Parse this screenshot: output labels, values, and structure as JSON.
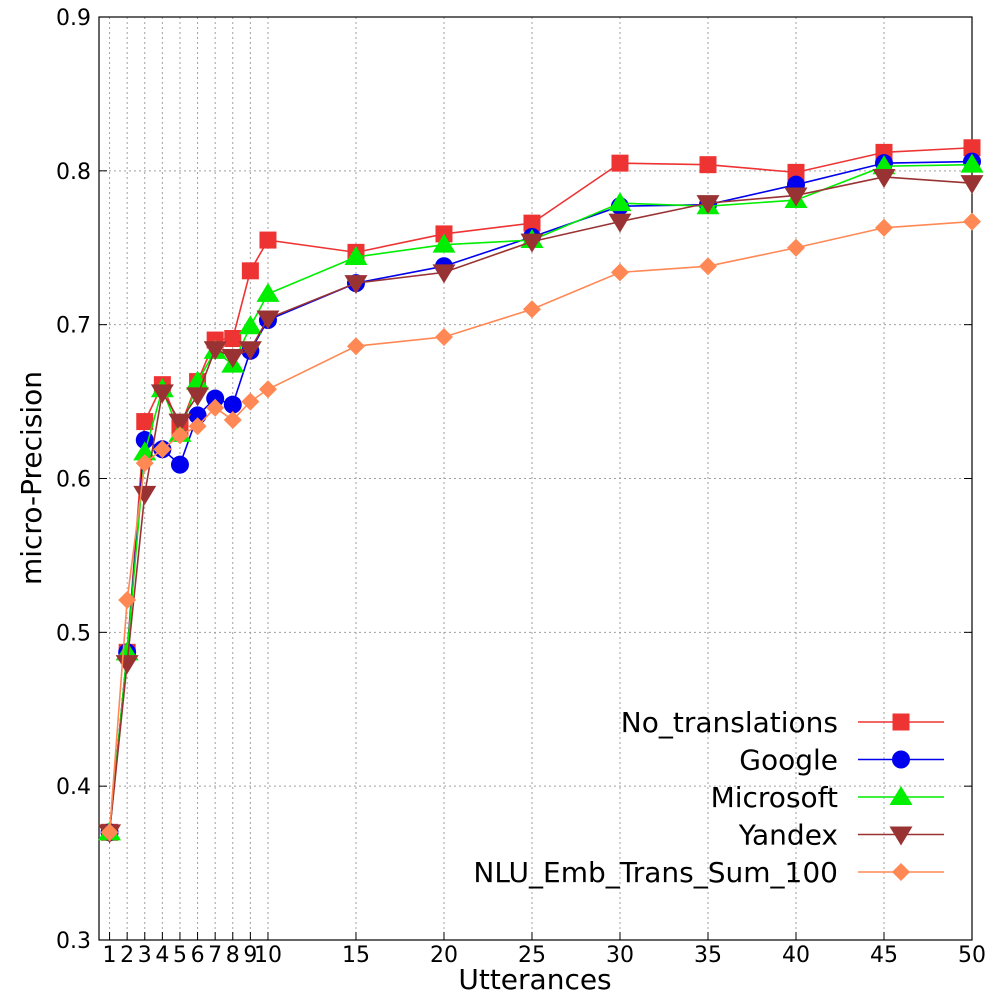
{
  "chart_data": {
    "type": "line",
    "title": "",
    "xlabel": "Utterances",
    "ylabel": "micro-Precision",
    "xlim": [
      0.4,
      50
    ],
    "ylim": [
      0.3,
      0.9
    ],
    "x_ticks": [
      1,
      2,
      3,
      4,
      5,
      6,
      7,
      8,
      9,
      10,
      15,
      20,
      25,
      30,
      35,
      40,
      45,
      50
    ],
    "x_tick_labels": [
      "1",
      "2",
      "3",
      "4",
      "5",
      "6",
      "7",
      "8",
      "9",
      "10",
      "15",
      "20",
      "25",
      "30",
      "35",
      "40",
      "45",
      "50"
    ],
    "y_ticks": [
      0.3,
      0.4,
      0.5,
      0.6,
      0.7,
      0.8,
      0.9
    ],
    "y_tick_labels": [
      "0.3",
      "0.4",
      "0.5",
      "0.6",
      "0.7",
      "0.8",
      "0.9"
    ],
    "grid": true,
    "legend_position": "bottom-right",
    "x": [
      1,
      2,
      3,
      4,
      5,
      6,
      7,
      8,
      9,
      10,
      15,
      20,
      25,
      30,
      35,
      40,
      45,
      50
    ],
    "series": [
      {
        "name": "No_translations",
        "color": "#ee3333",
        "marker": "square",
        "values": [
          0.37,
          0.487,
          0.637,
          0.661,
          0.633,
          0.663,
          0.69,
          0.691,
          0.735,
          0.755,
          0.747,
          0.759,
          0.766,
          0.805,
          0.804,
          0.799,
          0.812,
          0.815
        ]
      },
      {
        "name": "Google",
        "color": "#0000ee",
        "marker": "circle",
        "values": [
          0.37,
          0.487,
          0.625,
          0.619,
          0.609,
          0.641,
          0.652,
          0.648,
          0.683,
          0.703,
          0.727,
          0.738,
          0.757,
          0.777,
          0.778,
          0.791,
          0.805,
          0.806
        ]
      },
      {
        "name": "Microsoft",
        "color": "#00ee00",
        "marker": "triangle-up",
        "values": [
          0.37,
          0.487,
          0.617,
          0.658,
          0.629,
          0.663,
          0.683,
          0.674,
          0.699,
          0.72,
          0.744,
          0.752,
          0.755,
          0.779,
          0.777,
          0.781,
          0.803,
          0.804
        ]
      },
      {
        "name": "Yandex",
        "color": "#993333",
        "marker": "triangle-down",
        "values": [
          0.37,
          0.48,
          0.59,
          0.656,
          0.637,
          0.654,
          0.684,
          0.679,
          0.684,
          0.704,
          0.727,
          0.734,
          0.754,
          0.767,
          0.779,
          0.784,
          0.796,
          0.792
        ]
      },
      {
        "name": "NLU_Emb_Trans_Sum_100",
        "color": "#ff8855",
        "marker": "diamond",
        "values": [
          0.37,
          0.521,
          0.61,
          0.619,
          0.628,
          0.634,
          0.646,
          0.638,
          0.65,
          0.658,
          0.686,
          0.692,
          0.71,
          0.734,
          0.738,
          0.75,
          0.763,
          0.767
        ]
      }
    ]
  }
}
